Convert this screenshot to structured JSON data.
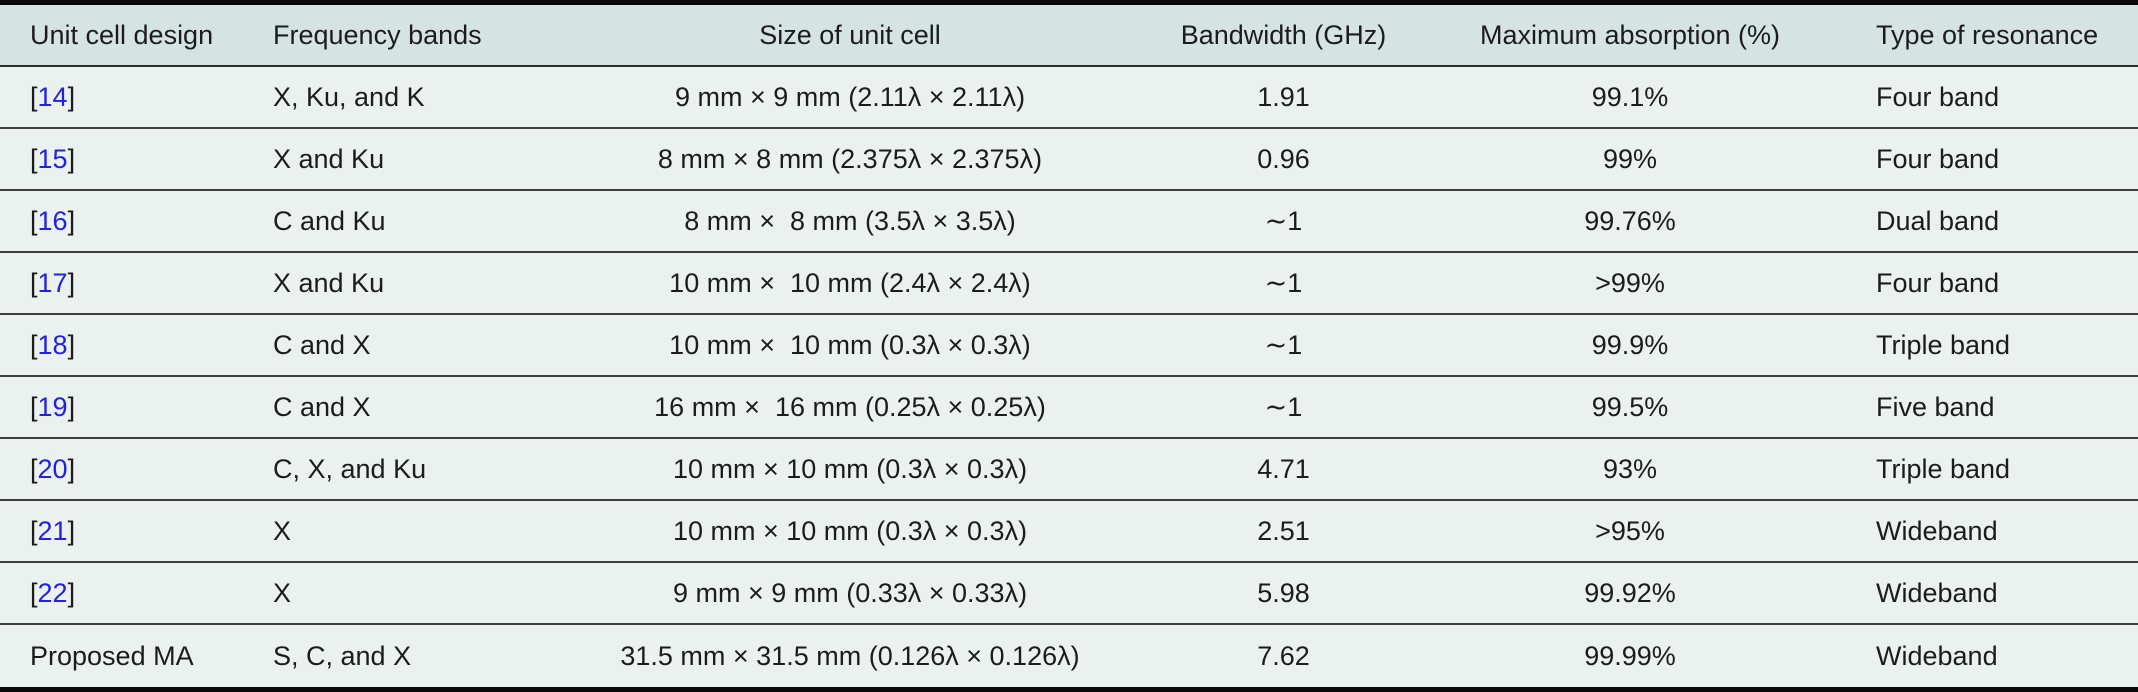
{
  "colors": {
    "header_bg": "#d6e4e1",
    "row_bg": "#ebf1ef",
    "text": "#1c1c1c",
    "citation_blue": "#2121df",
    "rule_heavy": "#0a0a0a",
    "rule_light": "#3e3e3e"
  },
  "table": {
    "columns": [
      {
        "key": "design",
        "label": "Unit cell design"
      },
      {
        "key": "bands",
        "label": "Frequency bands"
      },
      {
        "key": "size",
        "label": "Size of unit cell"
      },
      {
        "key": "bandwidth",
        "label": "Bandwidth (GHz)"
      },
      {
        "key": "absorption",
        "label": "Maximum absorption (%)"
      },
      {
        "key": "resonance",
        "label": "Type of resonance"
      }
    ],
    "rows": [
      {
        "design": {
          "open": "[",
          "num": "14",
          "close": "]"
        },
        "bands": "X, Ku, and K",
        "size": "9 mm × 9 mm (2.11λ × 2.11λ)",
        "bandwidth": "1.91",
        "absorption": "99.1%",
        "resonance": "Four band"
      },
      {
        "design": {
          "open": "[",
          "num": "15",
          "close": "]"
        },
        "bands": "X and Ku",
        "size": "8 mm × 8 mm (2.375λ × 2.375λ)",
        "bandwidth": "0.96",
        "absorption": "99%",
        "resonance": "Four band"
      },
      {
        "design": {
          "open": "[",
          "num": "16",
          "close": "]"
        },
        "bands": "C and Ku",
        "size": "8 mm ×  8 mm (3.5λ × 3.5λ)",
        "bandwidth": "∼1",
        "absorption": "99.76%",
        "resonance": "Dual band"
      },
      {
        "design": {
          "open": "[",
          "num": "17",
          "close": "]"
        },
        "bands": "X and Ku",
        "size": "10 mm ×  10 mm (2.4λ × 2.4λ)",
        "bandwidth": "∼1",
        "absorption": ">99%",
        "resonance": "Four band"
      },
      {
        "design": {
          "open": "[",
          "num": "18",
          "close": "]"
        },
        "bands": "C and X",
        "size": "10 mm ×  10 mm (0.3λ × 0.3λ)",
        "bandwidth": "∼1",
        "absorption": "99.9%",
        "resonance": "Triple band"
      },
      {
        "design": {
          "open": "[",
          "num": "19",
          "close": "]"
        },
        "bands": "C and X",
        "size": "16 mm ×  16 mm (0.25λ × 0.25λ)",
        "bandwidth": "∼1",
        "absorption": "99.5%",
        "resonance": "Five band"
      },
      {
        "design": {
          "open": "[",
          "num": "20",
          "close": "]"
        },
        "bands": "C, X, and Ku",
        "size": "10 mm × 10 mm (0.3λ × 0.3λ)",
        "bandwidth": "4.71",
        "absorption": "93%",
        "resonance": "Triple band"
      },
      {
        "design": {
          "open": "[",
          "num": "21",
          "close": "]"
        },
        "bands": "X",
        "size": "10 mm × 10 mm (0.3λ × 0.3λ)",
        "bandwidth": "2.51",
        "absorption": ">95%",
        "resonance": "Wideband"
      },
      {
        "design": {
          "open": "[",
          "num": "22",
          "close": "]"
        },
        "bands": "X",
        "size": "9 mm × 9 mm (0.33λ × 0.33λ)",
        "bandwidth": "5.98",
        "absorption": "99.92%",
        "resonance": "Wideband"
      },
      {
        "design": {
          "text": "Proposed MA"
        },
        "bands": "S, C, and X",
        "size": "31.5 mm × 31.5 mm (0.126λ × 0.126λ)",
        "bandwidth": "7.62",
        "absorption": "99.99%",
        "resonance": "Wideband"
      }
    ]
  }
}
